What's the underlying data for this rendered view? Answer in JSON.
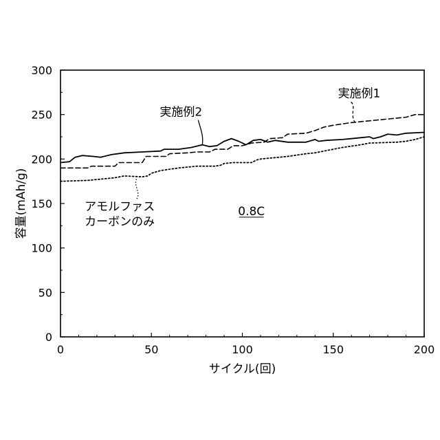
{
  "chart_data": {
    "type": "line",
    "title": "",
    "xlabel": "サイクル(回)",
    "ylabel": "容量(mAh/g)",
    "xlim": [
      0,
      200
    ],
    "ylim": [
      0,
      300
    ],
    "xticks": [
      0,
      50,
      100,
      150,
      200
    ],
    "yticks": [
      0,
      50,
      100,
      150,
      200,
      250,
      300
    ],
    "grid": false,
    "condition_label": "0.8C",
    "series": [
      {
        "name": "実施例2",
        "style": "solid",
        "x": [
          0,
          5,
          8,
          12,
          18,
          22,
          28,
          35,
          45,
          55,
          57,
          65,
          72,
          78,
          82,
          86,
          90,
          94,
          98,
          102,
          106,
          110,
          114,
          118,
          125,
          135,
          140,
          142,
          146,
          155,
          165,
          170,
          172,
          176,
          180,
          185,
          190,
          200
        ],
        "y": [
          196,
          197,
          202,
          204,
          203,
          202,
          205,
          207,
          208,
          209,
          211,
          211,
          213,
          216,
          214,
          215,
          220,
          223,
          220,
          216,
          221,
          222,
          219,
          221,
          219,
          219,
          222,
          220,
          221,
          222,
          224,
          225,
          223,
          225,
          228,
          227,
          229,
          230
        ]
      },
      {
        "name": "実施例1",
        "style": "dashed",
        "x": [
          0,
          15,
          17,
          30,
          32,
          45,
          47,
          58,
          60,
          70,
          75,
          82,
          85,
          92,
          95,
          100,
          105,
          112,
          115,
          122,
          125,
          135,
          140,
          145,
          150,
          160,
          170,
          180,
          190,
          195,
          200
        ],
        "y": [
          190,
          190,
          192,
          192,
          196,
          196,
          203,
          203,
          206,
          207,
          208,
          208,
          211,
          211,
          215,
          215,
          218,
          219,
          223,
          224,
          228,
          229,
          232,
          236,
          238,
          241,
          243,
          245,
          247,
          250,
          250
        ]
      },
      {
        "name": "アモルファスカーボンのみ",
        "style": "dotted",
        "x": [
          0,
          15,
          20,
          25,
          30,
          35,
          45,
          48,
          50,
          55,
          65,
          75,
          85,
          88,
          90,
          95,
          105,
          108,
          110,
          115,
          125,
          135,
          140,
          145,
          155,
          165,
          170,
          185,
          190,
          195,
          200
        ],
        "y": [
          175,
          176,
          177,
          178,
          179,
          181,
          180,
          181,
          184,
          187,
          190,
          192,
          192,
          193,
          195,
          196,
          196,
          199,
          200,
          201,
          203,
          206,
          207,
          209,
          213,
          216,
          218,
          219,
          220,
          222,
          225
        ]
      }
    ],
    "annotations": [
      {
        "series": "実施例2",
        "text": "実施例2",
        "at": [
          78,
          216
        ]
      },
      {
        "series": "実施例1",
        "text": "実施例1",
        "at": [
          162,
          241
        ]
      },
      {
        "series": "アモルファスカーボンのみ",
        "lines": [
          "アモルファス",
          "カーボンのみ"
        ],
        "at": [
          42,
          180
        ]
      }
    ]
  }
}
